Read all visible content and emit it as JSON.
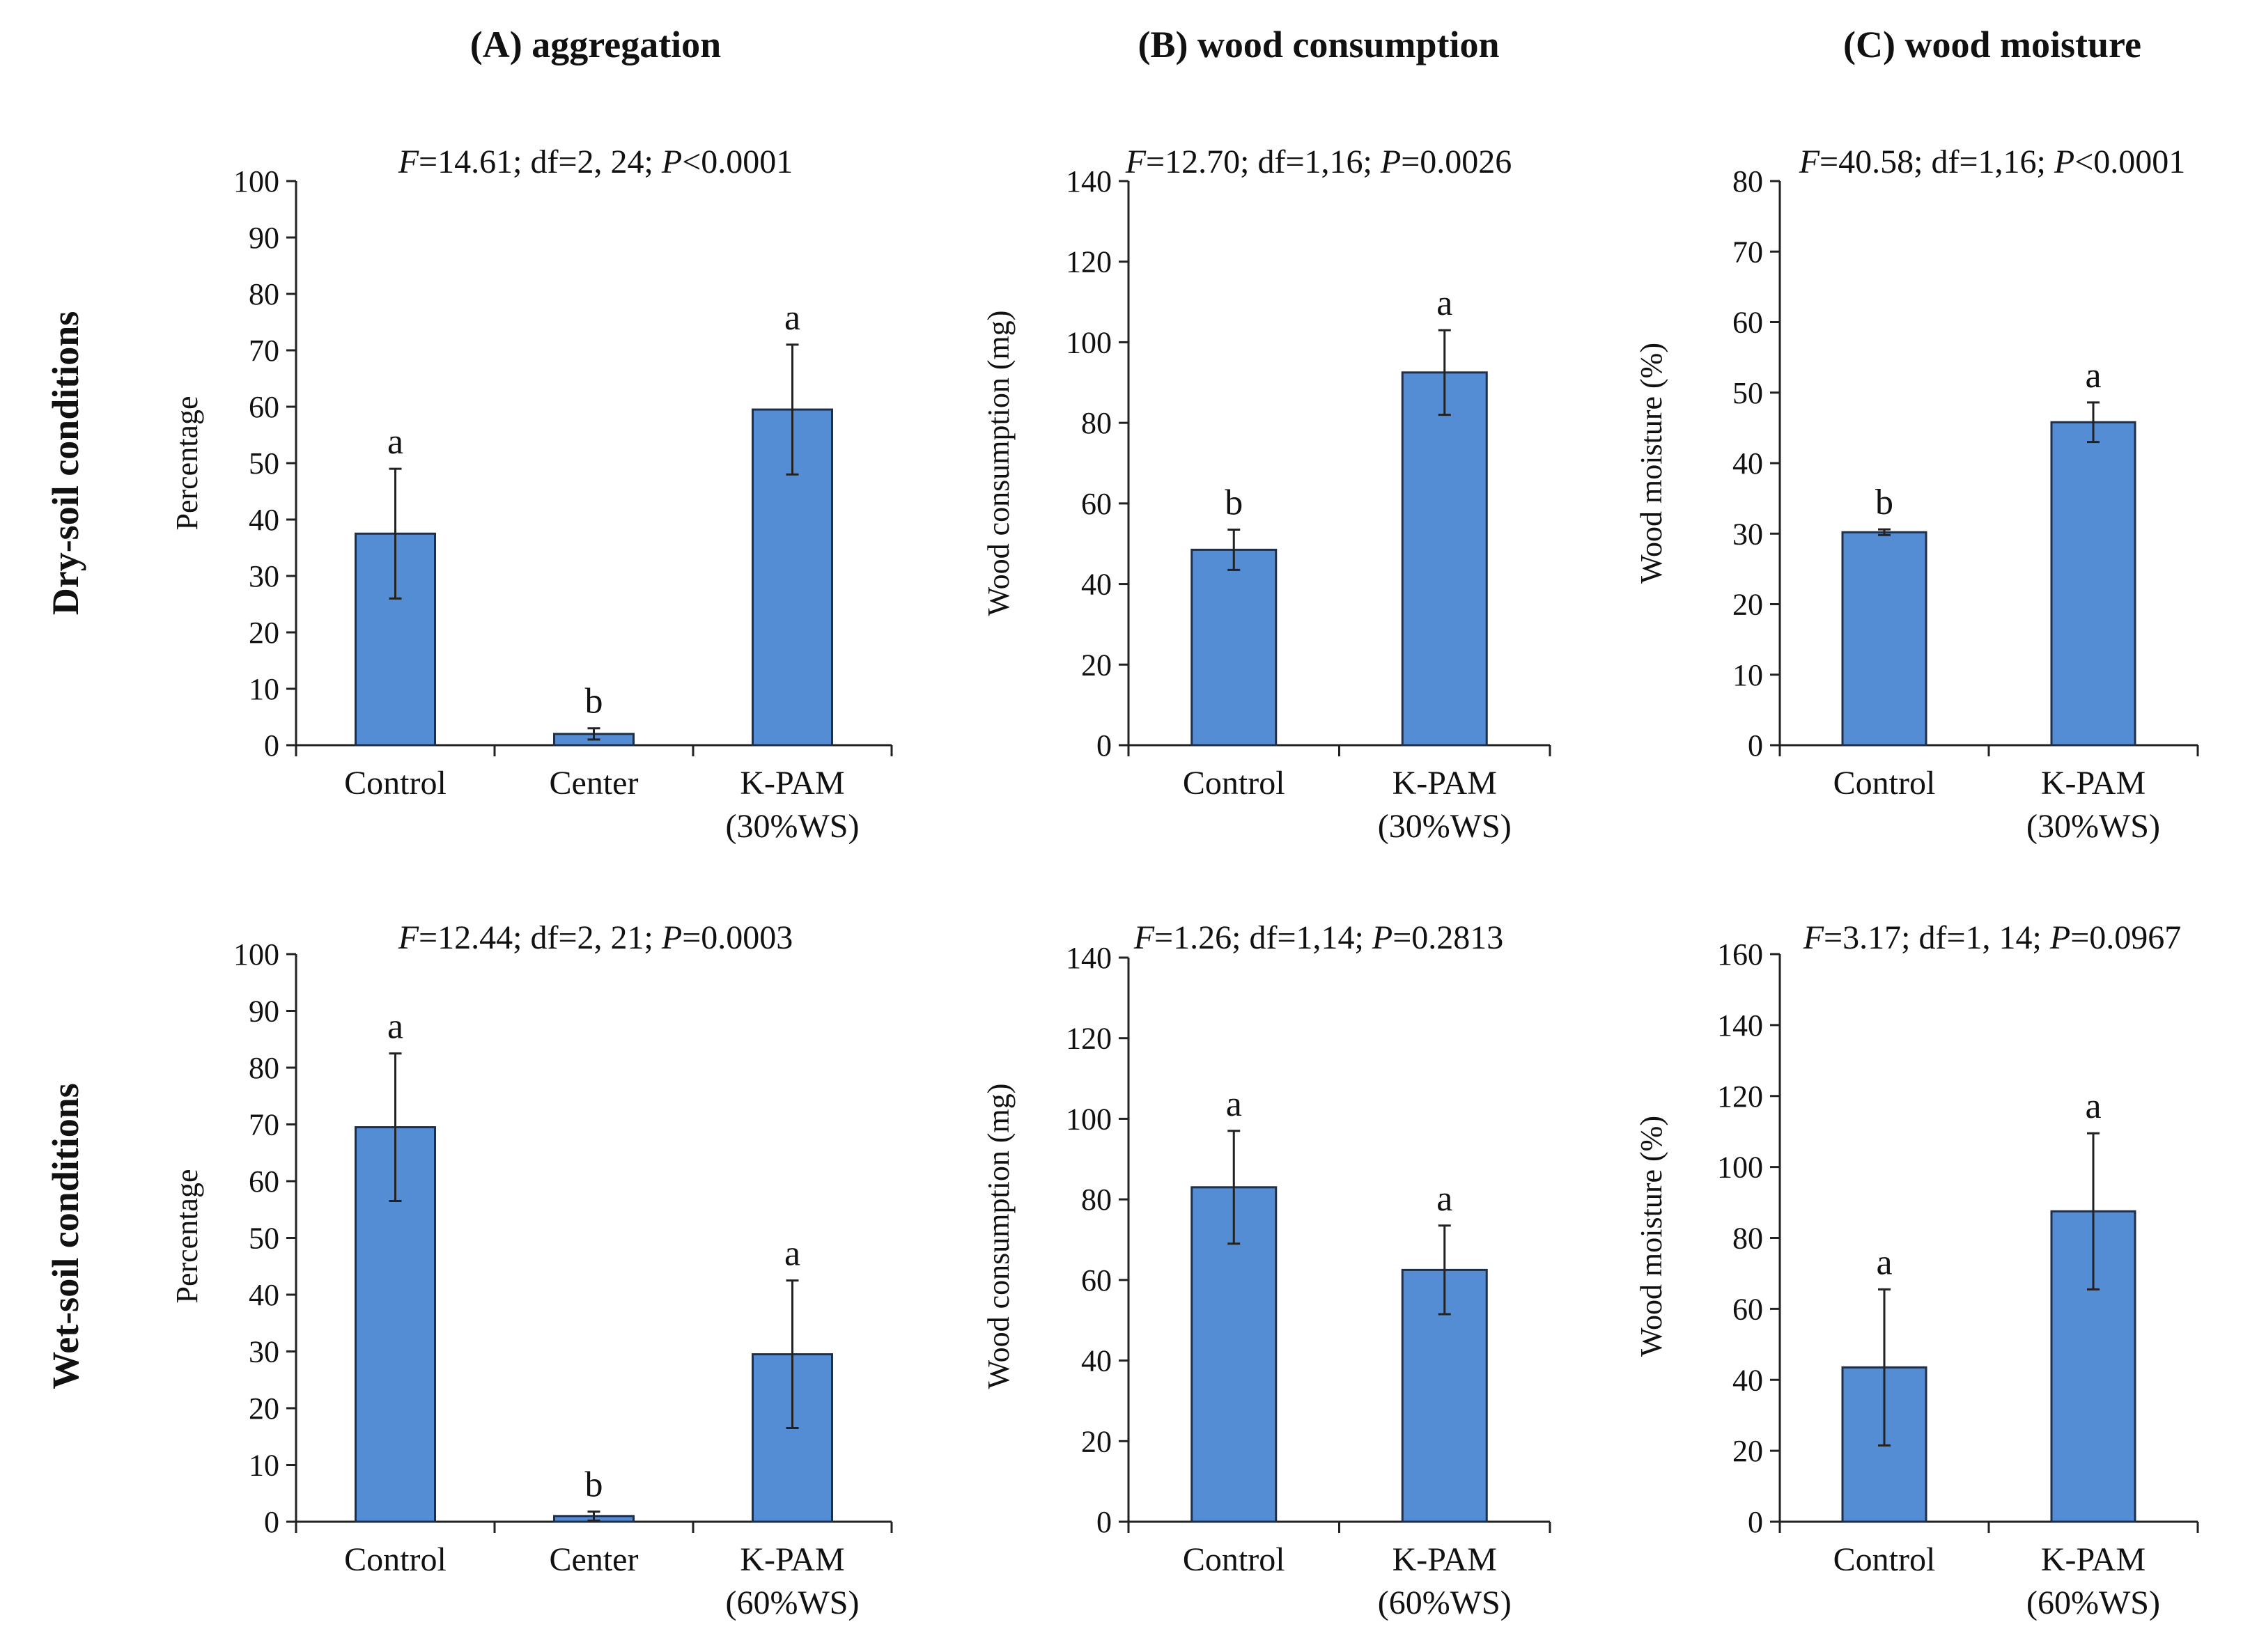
{
  "column_titles": [
    "(A) aggregation",
    "(B) wood consumption",
    "(C) wood moisture"
  ],
  "row_titles": [
    "Dry-soil conditions",
    "Wet-soil conditions"
  ],
  "chart_data": [
    {
      "id": "A-dry",
      "type": "bar",
      "stats": {
        "F": "14.61",
        "df": "2, 24",
        "P_op": "<",
        "P": "0.0001"
      },
      "ylabel": "Percentage",
      "xlabel": "",
      "ylim": [
        0,
        100
      ],
      "ystep": 10,
      "categories": [
        [
          "Control"
        ],
        [
          "Center"
        ],
        [
          "K-PAM",
          "(30%WS)"
        ]
      ],
      "values": [
        37.5,
        2.0,
        59.5
      ],
      "errors": [
        11.5,
        1.0,
        11.5
      ],
      "letters": [
        "a",
        "b",
        "a"
      ],
      "bar_color": "#548dd4"
    },
    {
      "id": "B-dry",
      "type": "bar",
      "stats": {
        "F": "12.70",
        "df": "1,16",
        "P_op": "=",
        "P": "0.0026"
      },
      "ylabel": "Wood consumption (mg)",
      "xlabel": "",
      "ylim": [
        0,
        140
      ],
      "ystep": 20,
      "categories": [
        [
          "Control"
        ],
        [
          "K-PAM",
          "(30%WS)"
        ]
      ],
      "values": [
        48.5,
        92.5
      ],
      "errors": [
        5.0,
        10.5
      ],
      "letters": [
        "b",
        "a"
      ],
      "bar_color": "#548dd4"
    },
    {
      "id": "C-dry",
      "type": "bar",
      "stats": {
        "F": "40.58",
        "df": "1,16",
        "P_op": "<",
        "P": "0.0001"
      },
      "ylabel": "Wood moisture (%)",
      "xlabel": "",
      "ylim": [
        0,
        80
      ],
      "ystep": 10,
      "categories": [
        [
          "Control"
        ],
        [
          "K-PAM",
          "(30%WS)"
        ]
      ],
      "values": [
        30.2,
        45.8
      ],
      "errors": [
        0.4,
        2.8
      ],
      "letters": [
        "b",
        "a"
      ],
      "bar_color": "#548dd4"
    },
    {
      "id": "A-wet",
      "type": "bar",
      "stats": {
        "F": "12.44",
        "df": "2, 21",
        "P_op": "=",
        "P": "0.0003"
      },
      "ylabel": "Percentage",
      "xlabel": "",
      "ylim": [
        0,
        100
      ],
      "ystep": 10,
      "categories": [
        [
          "Control"
        ],
        [
          "Center"
        ],
        [
          "K-PAM",
          "(60%WS)"
        ]
      ],
      "values": [
        69.5,
        1.0,
        29.5
      ],
      "errors": [
        13.0,
        0.8,
        13.0
      ],
      "letters": [
        "a",
        "b",
        "a"
      ],
      "bar_color": "#548dd4"
    },
    {
      "id": "B-wet",
      "type": "bar",
      "stats": {
        "F": "1.26",
        "df": "1,14",
        "P_op": "=",
        "P": "0.2813"
      },
      "ylabel": "Wood consumption (mg)",
      "xlabel": "",
      "ylim": [
        0,
        140
      ],
      "ystep": 20,
      "categories": [
        [
          "Control"
        ],
        [
          "K-PAM",
          "(60%WS)"
        ]
      ],
      "values": [
        83.0,
        62.5
      ],
      "errors": [
        14.0,
        11.0
      ],
      "letters": [
        "a",
        "a"
      ],
      "bar_color": "#548dd4"
    },
    {
      "id": "C-wet",
      "type": "bar",
      "stats": {
        "F": "3.17",
        "df": "1, 14",
        "P_op": "=",
        "P": "0.0967"
      },
      "ylabel": "Wood moisture (%)",
      "xlabel": "",
      "ylim": [
        0,
        160
      ],
      "ystep": 20,
      "categories": [
        [
          "Control"
        ],
        [
          "K-PAM",
          "(60%WS)"
        ]
      ],
      "values": [
        43.5,
        87.5
      ],
      "errors": [
        22.0,
        22.0
      ],
      "letters": [
        "a",
        "a"
      ],
      "bar_color": "#548dd4"
    }
  ]
}
